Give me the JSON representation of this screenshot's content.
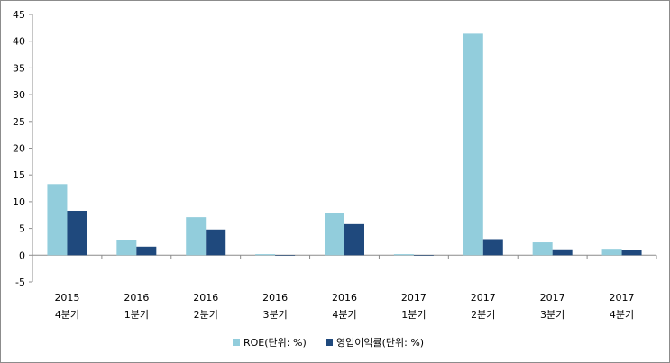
{
  "chart_data": {
    "type": "bar",
    "categories": [
      [
        "2015",
        "4분기"
      ],
      [
        "2016",
        "1분기"
      ],
      [
        "2016",
        "2분기"
      ],
      [
        "2016",
        "3분기"
      ],
      [
        "2016",
        "4분기"
      ],
      [
        "2017",
        "1분기"
      ],
      [
        "2017",
        "2분기"
      ],
      [
        "2017",
        "3분기"
      ],
      [
        "2017",
        "4분기"
      ]
    ],
    "series": [
      {
        "name": "ROE(단위: %)",
        "color": "#92cddc",
        "values": [
          13.3,
          2.9,
          7.1,
          0.2,
          7.8,
          0.2,
          41.4,
          2.4,
          1.2
        ]
      },
      {
        "name": "영업이익률(단위: %)",
        "color": "#1f497d",
        "values": [
          8.3,
          1.6,
          4.8,
          0.0,
          5.8,
          0.0,
          3.0,
          1.1,
          0.9
        ]
      }
    ],
    "ylim": [
      -5,
      45
    ],
    "yticks": [
      -5,
      0,
      5,
      10,
      15,
      20,
      25,
      30,
      35,
      40,
      45
    ],
    "grid": false,
    "legend_position": "bottom"
  }
}
